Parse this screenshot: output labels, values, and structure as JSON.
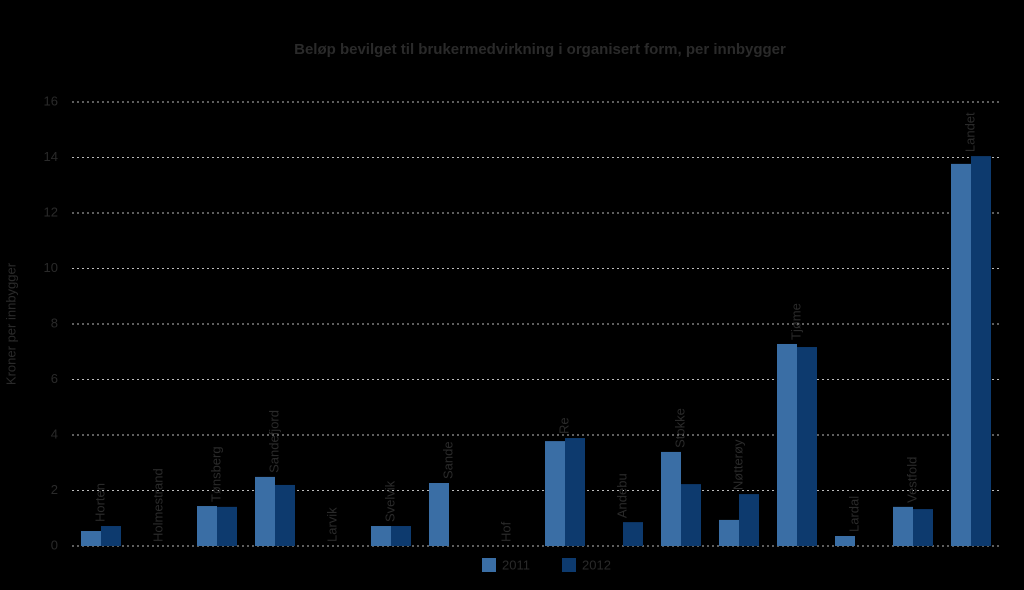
{
  "chart_data": {
    "type": "bar",
    "title": "Beløp bevilget til brukermedvirkning i organisert form, per innbygger",
    "y_label": "Kroner per innbygger",
    "categories": [
      "Horten",
      "Holmestrand",
      "Tønsberg",
      "Sandefjord",
      "Larvik",
      "Svelvik",
      "Sande",
      "Hof",
      "Re",
      "Andebu",
      "Stokke",
      "Nøtterøy",
      "Tjøme",
      "Lardal",
      "Vestfold",
      "Landet"
    ],
    "series": [
      {
        "name": "2011",
        "color": "#3a6ea5",
        "values": [
          0.54,
          null,
          1.44,
          2.49,
          null,
          0.72,
          2.27,
          null,
          3.78,
          null,
          3.39,
          0.94,
          7.28,
          0.36,
          1.41,
          13.77
        ]
      },
      {
        "name": "2012",
        "color": "#0d3a6e",
        "values": [
          0.72,
          null,
          1.41,
          2.2,
          null,
          0.72,
          null,
          null,
          3.89,
          0.86,
          2.23,
          1.87,
          7.17,
          null,
          1.33,
          14.05
        ]
      }
    ],
    "ylim": [
      0,
      16
    ],
    "yticks": [
      0,
      2,
      4,
      6,
      8,
      10,
      12,
      14,
      16
    ],
    "grid": true,
    "legend": "bottom"
  }
}
